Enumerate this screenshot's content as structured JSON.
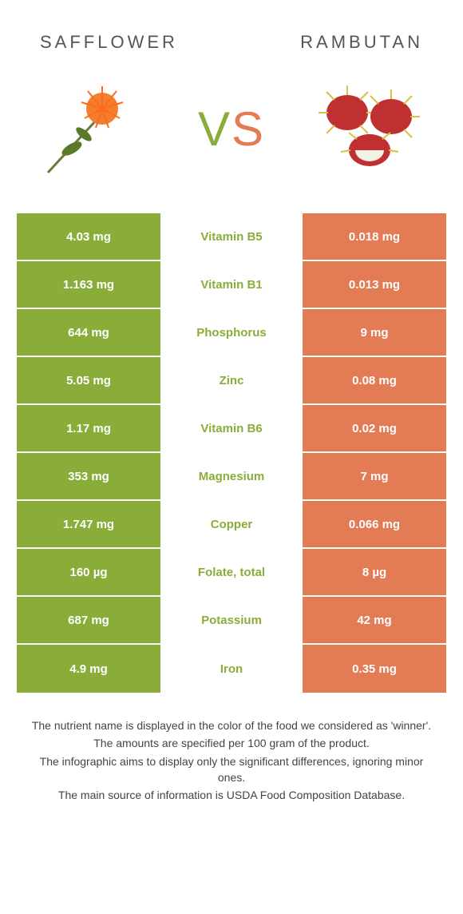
{
  "header": {
    "left_title": "Safflower",
    "right_title": "Rambutan",
    "vs_v": "V",
    "vs_s": "S"
  },
  "colors": {
    "left": "#8aad3a",
    "right": "#e37b54",
    "background": "#ffffff"
  },
  "rows": [
    {
      "left": "4.03 mg",
      "nutrient": "Vitamin B5",
      "right": "0.018 mg",
      "winner": "left"
    },
    {
      "left": "1.163 mg",
      "nutrient": "Vitamin B1",
      "right": "0.013 mg",
      "winner": "left"
    },
    {
      "left": "644 mg",
      "nutrient": "Phosphorus",
      "right": "9 mg",
      "winner": "left"
    },
    {
      "left": "5.05 mg",
      "nutrient": "Zinc",
      "right": "0.08 mg",
      "winner": "left"
    },
    {
      "left": "1.17 mg",
      "nutrient": "Vitamin B6",
      "right": "0.02 mg",
      "winner": "left"
    },
    {
      "left": "353 mg",
      "nutrient": "Magnesium",
      "right": "7 mg",
      "winner": "left"
    },
    {
      "left": "1.747 mg",
      "nutrient": "Copper",
      "right": "0.066 mg",
      "winner": "left"
    },
    {
      "left": "160 µg",
      "nutrient": "Folate, total",
      "right": "8 µg",
      "winner": "left"
    },
    {
      "left": "687 mg",
      "nutrient": "Potassium",
      "right": "42 mg",
      "winner": "left"
    },
    {
      "left": "4.9 mg",
      "nutrient": "Iron",
      "right": "0.35 mg",
      "winner": "left"
    }
  ],
  "footer": {
    "line1": "The nutrient name is displayed in the color of the food we considered as 'winner'.",
    "line2": "The amounts are specified per 100 gram of the product.",
    "line3": "The infographic aims to display only the significant differences, ignoring minor ones.",
    "line4": "The main source of information is USDA Food Composition Database."
  }
}
